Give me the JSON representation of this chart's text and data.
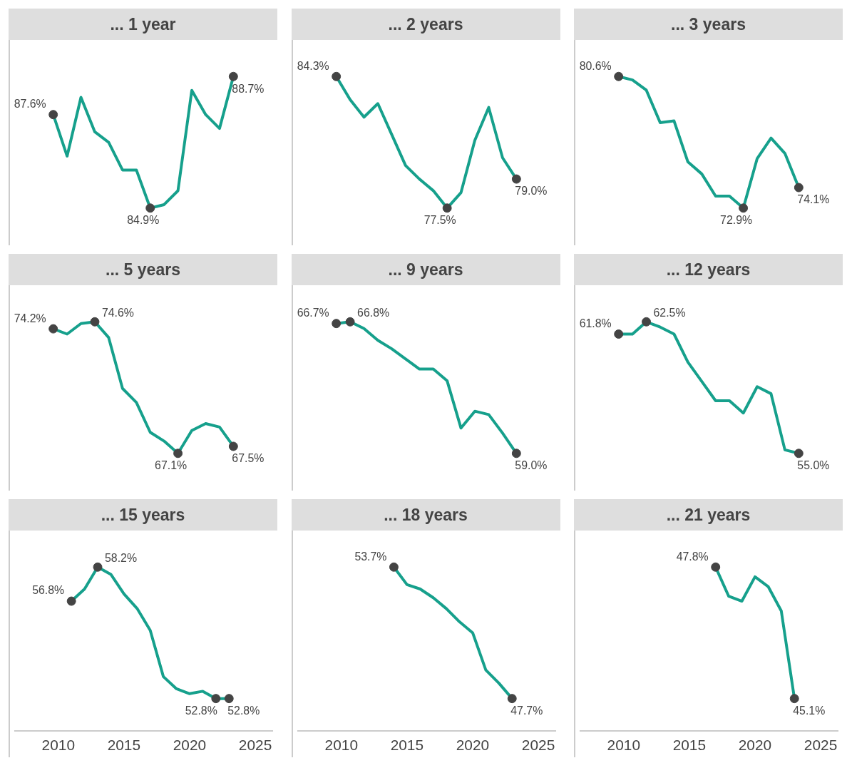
{
  "chart_data": [
    {
      "type": "line",
      "title": "... 1 year",
      "color": "#16a08c",
      "tick_labels": false,
      "categories": [
        null,
        null,
        null,
        null,
        null,
        null,
        null,
        null,
        null,
        null,
        null,
        null,
        null,
        null
      ],
      "values": [
        87.6,
        86.4,
        88.1,
        87.1,
        86.8,
        86.0,
        86.0,
        84.9,
        85.0,
        85.4,
        88.3,
        87.6,
        87.2,
        88.7
      ],
      "value_labels": [
        "87.6%",
        null,
        null,
        null,
        null,
        null,
        null,
        "84.9%",
        null,
        null,
        null,
        null,
        null,
        "88.7%"
      ]
    },
    {
      "type": "line",
      "title": "... 2 years",
      "color": "#16a08c",
      "tick_labels": false,
      "categories": [
        null,
        null,
        null,
        null,
        null,
        null,
        null,
        null,
        null,
        null,
        null,
        null,
        null,
        null
      ],
      "values": [
        84.3,
        83.1,
        82.2,
        82.9,
        81.3,
        79.7,
        79.0,
        78.4,
        77.5,
        78.3,
        81.0,
        82.7,
        80.1,
        79.0
      ],
      "value_labels": [
        "84.3%",
        null,
        null,
        null,
        null,
        null,
        null,
        null,
        "77.5%",
        null,
        null,
        null,
        null,
        "79.0%"
      ]
    },
    {
      "type": "line",
      "title": "... 3 years",
      "color": "#16a08c",
      "tick_labels": false,
      "categories": [
        null,
        null,
        null,
        null,
        null,
        null,
        null,
        null,
        null,
        null,
        null,
        null,
        null,
        null
      ],
      "values": [
        80.6,
        80.4,
        79.8,
        77.9,
        78.0,
        75.6,
        74.9,
        73.6,
        73.6,
        72.9,
        75.8,
        77.0,
        76.1,
        74.1
      ],
      "value_labels": [
        "80.6%",
        null,
        null,
        null,
        null,
        null,
        null,
        null,
        null,
        "72.9%",
        null,
        null,
        null,
        "74.1%"
      ]
    },
    {
      "type": "line",
      "title": "... 5 years",
      "color": "#16a08c",
      "tick_labels": false,
      "categories": [
        null,
        null,
        null,
        null,
        null,
        null,
        null,
        null,
        null,
        null,
        null,
        null,
        null,
        null
      ],
      "values": [
        74.2,
        73.9,
        74.5,
        74.6,
        73.7,
        70.8,
        70.0,
        68.3,
        67.8,
        67.1,
        68.4,
        68.8,
        68.6,
        67.5
      ],
      "value_labels": [
        "74.2%",
        null,
        null,
        "74.6%",
        null,
        null,
        null,
        null,
        null,
        "67.1%",
        null,
        null,
        null,
        "67.5%"
      ]
    },
    {
      "type": "line",
      "title": "... 9 years",
      "color": "#16a08c",
      "tick_labels": false,
      "categories": [
        null,
        null,
        null,
        null,
        null,
        null,
        null,
        null,
        null,
        null,
        null,
        null,
        null,
        null
      ],
      "values": [
        66.7,
        66.8,
        66.4,
        65.7,
        65.2,
        64.6,
        64.0,
        64.0,
        63.3,
        60.5,
        61.5,
        61.3,
        60.2,
        59.0
      ],
      "value_labels": [
        "66.7%",
        "66.8%",
        null,
        null,
        null,
        null,
        null,
        null,
        null,
        null,
        null,
        null,
        null,
        "59.0%"
      ]
    },
    {
      "type": "line",
      "title": "... 12 years",
      "color": "#16a08c",
      "tick_labels": false,
      "categories": [
        null,
        null,
        null,
        null,
        null,
        null,
        null,
        null,
        null,
        null,
        null,
        null,
        null,
        null
      ],
      "values": [
        61.8,
        61.8,
        62.5,
        62.2,
        61.8,
        60.2,
        59.1,
        58.0,
        58.0,
        57.3,
        58.8,
        58.4,
        55.2,
        55.0
      ],
      "value_labels": [
        "61.8%",
        null,
        "62.5%",
        null,
        null,
        null,
        null,
        null,
        null,
        null,
        null,
        null,
        null,
        "55.0%"
      ]
    },
    {
      "type": "line",
      "title": "... 15 years",
      "color": "#16a08c",
      "tick_labels": "x",
      "xlim": [
        2006.7,
        2026.3
      ],
      "xticks": [
        2010,
        2015,
        2020,
        2025
      ],
      "x": [
        2011,
        2012,
        2013,
        2014,
        2015,
        2016,
        2017,
        2018,
        2019,
        2020,
        2021,
        2022,
        2023
      ],
      "values": [
        56.8,
        57.3,
        58.2,
        57.9,
        57.1,
        56.5,
        55.6,
        53.7,
        53.2,
        53.0,
        53.1,
        52.8,
        52.8
      ],
      "value_labels": [
        "56.8%",
        null,
        "58.2%",
        null,
        null,
        null,
        null,
        null,
        null,
        null,
        null,
        "52.8%",
        "52.8%"
      ]
    },
    {
      "type": "line",
      "title": "... 18 years",
      "color": "#16a08c",
      "tick_labels": "x",
      "xlim": [
        2006.7,
        2026.3
      ],
      "xticks": [
        2010,
        2015,
        2020,
        2025
      ],
      "x": [
        2014,
        2015,
        2016,
        2017,
        2018,
        2019,
        2020,
        2021,
        2022,
        2023
      ],
      "values": [
        53.7,
        52.9,
        52.7,
        52.3,
        51.8,
        51.2,
        50.7,
        49.0,
        48.4,
        47.7
      ],
      "value_labels": [
        "53.7%",
        null,
        null,
        null,
        null,
        null,
        null,
        null,
        null,
        "47.7%"
      ]
    },
    {
      "type": "line",
      "title": "... 21 years",
      "color": "#16a08c",
      "tick_labels": "x",
      "xlim": [
        2006.7,
        2026.3
      ],
      "xticks": [
        2010,
        2015,
        2020,
        2025
      ],
      "x": [
        2017,
        2018,
        2019,
        2020,
        2021,
        2022,
        2023
      ],
      "values": [
        47.8,
        47.2,
        47.1,
        47.6,
        47.4,
        46.9,
        45.1
      ],
      "value_labels": [
        "47.8%",
        null,
        null,
        null,
        null,
        null,
        "45.1%"
      ]
    }
  ]
}
